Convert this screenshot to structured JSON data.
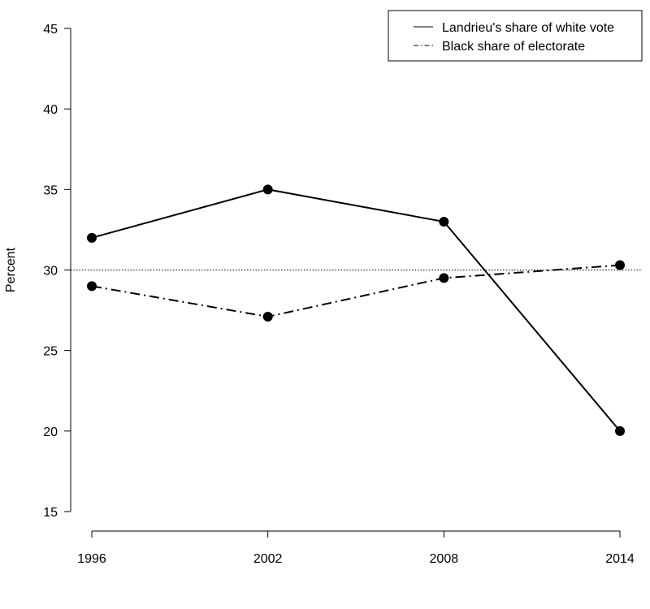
{
  "chart_data": {
    "type": "line",
    "title": "",
    "xlabel": "",
    "ylabel": "Percent",
    "x": [
      1996,
      2002,
      2008,
      2014
    ],
    "xlim": [
      1996,
      2014
    ],
    "ylim": [
      15,
      45
    ],
    "yticks": [
      15,
      20,
      25,
      30,
      35,
      40,
      45
    ],
    "xticks": [
      1996,
      2002,
      2008,
      2014
    ],
    "grid": false,
    "legend_position": "top-right",
    "reference_line": {
      "y": 30,
      "style": "dotted"
    },
    "series": [
      {
        "name": "Landrieu's share of white vote",
        "style": "solid",
        "values": [
          32,
          35,
          33,
          20
        ]
      },
      {
        "name": "Black share of electorate",
        "style": "dash-dot",
        "values": [
          29,
          27.1,
          29.5,
          30.3
        ]
      }
    ]
  }
}
